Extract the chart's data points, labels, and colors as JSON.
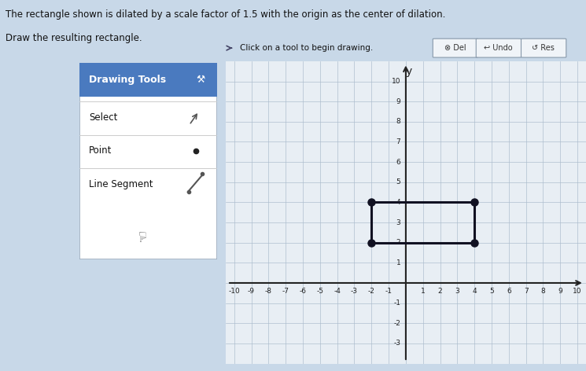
{
  "title_line1": "The rectangle shown is dilated by a scale factor of 1.5 with the origin as the center of dilation.",
  "title_line2": "Draw the resulting rectangle.",
  "bg_color": "#c8d8e8",
  "graph_bg": "#e8eef4",
  "panel_bg": "#ffffff",
  "panel_header_bg": "#4a7abf",
  "grid_color": "#aabbcc",
  "rect_color": "#111122",
  "rect_corners": [
    [
      -2,
      2
    ],
    [
      4,
      2
    ],
    [
      4,
      4
    ],
    [
      -2,
      4
    ]
  ],
  "xmin": -10.5,
  "xmax": 10.5,
  "ymin": -4,
  "ymax": 11,
  "panel_header": "Drawing Tools",
  "panel_items": [
    "Select",
    "Point",
    "Line Segment"
  ],
  "toolbar_text": "Click on a tool to begin drawing.",
  "toolbar_buttons": [
    "Del",
    "Undo",
    "Res"
  ],
  "toolbar_bg": "#d0dce8",
  "left_bg": "#b8ccd8"
}
